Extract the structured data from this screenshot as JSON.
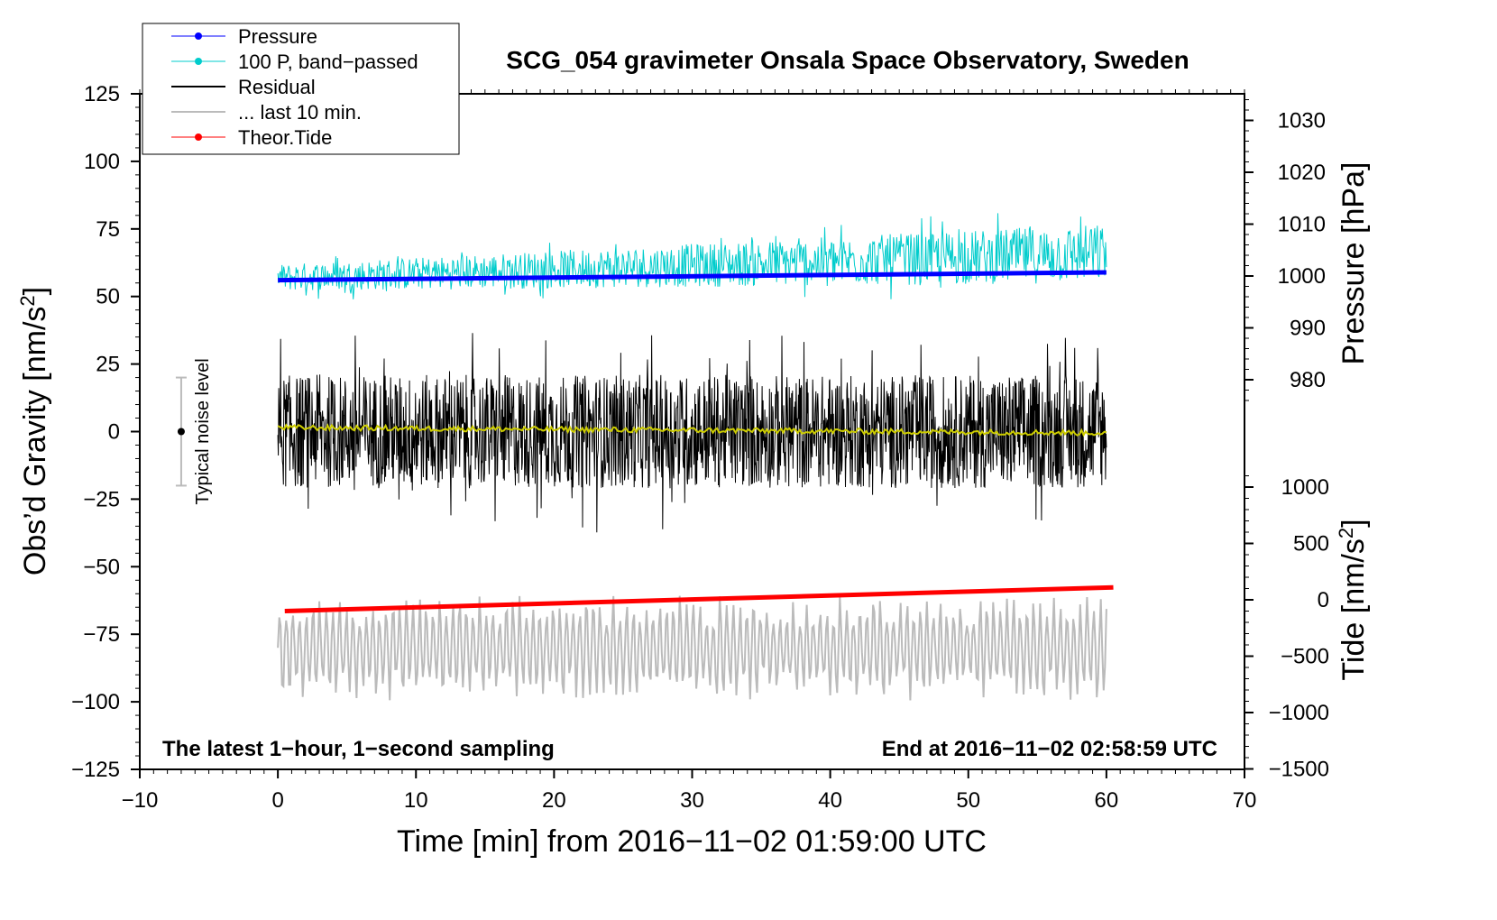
{
  "chart_data": {
    "type": "line",
    "title": "SCG_054 gravimeter Onsala Space Observatory, Sweden",
    "xlabel": "Time [min] from 2016−11−02 01:59:00 UTC",
    "ylabel_left": "Obs’d Gravity [nm/s",
    "ylabel_left_sup": "2",
    "ylabel_left_close": "]",
    "ylabel_right_pressure": "Pressure [hPa]",
    "ylabel_right_tide": "Tide [nm/s",
    "ylabel_right_tide_sup": "2",
    "ylabel_right_tide_close": "]",
    "xlim": [
      -10,
      70
    ],
    "ylim": [
      -125,
      125
    ],
    "x_ticks": [
      "−10",
      "0",
      "10",
      "20",
      "30",
      "40",
      "50",
      "60",
      "70"
    ],
    "y_ticks": [
      "125",
      "100",
      "75",
      "50",
      "25",
      "0",
      "−25",
      "−50",
      "−75",
      "−100",
      "−125"
    ],
    "pressure_axis": {
      "ticks": [
        "1030",
        "1020",
        "1010",
        "1000",
        "990",
        "980"
      ],
      "tick_values": [
        1030,
        1020,
        1010,
        1000,
        990,
        980
      ]
    },
    "tide_axis": {
      "ticks": [
        "1000",
        "500",
        "0",
        "−500",
        "−1000",
        "−1500"
      ],
      "tick_values": [
        1000,
        500,
        0,
        -500,
        -1000,
        -1500
      ]
    },
    "annotation_left": "The latest 1−hour, 1−second sampling",
    "annotation_right": "End at 2016−11−02 02:58:59 UTC",
    "noise_label": "Typical noise level",
    "noise_range": [
      -20,
      20
    ],
    "legend": [
      {
        "label": "Pressure",
        "color": "#0000ff",
        "marker": true
      },
      {
        "label": "100 P, band−passed",
        "color": "#00cccc",
        "marker": true
      },
      {
        "label": "Residual",
        "color": "#000000",
        "marker": false
      },
      {
        "label": "... last 10 min.",
        "color": "#bbbbbb",
        "marker": false
      },
      {
        "label": "Theor.Tide",
        "color": "#ff0000",
        "marker": true
      }
    ],
    "series": [
      {
        "name": "Pressure",
        "color": "#0000ff",
        "x_range": [
          0,
          60
        ],
        "pressure_start_hPa": 999.2,
        "pressure_end_hPa": 1000.7
      },
      {
        "name": "100 P, band−passed",
        "color": "#00cccc",
        "x_range": [
          0,
          60
        ],
        "level_start": 57,
        "level_end": 66,
        "amplitude_start": 5,
        "amplitude_end": 11
      },
      {
        "name": "Residual",
        "color": "#000000",
        "x_range": [
          0,
          60
        ],
        "level": 0,
        "amplitude": 30
      },
      {
        "name": "Residual smoothed",
        "color": "#cccc00",
        "x_range": [
          0,
          60
        ],
        "level": 0,
        "amplitude": 2
      },
      {
        "name": "... last 10 min.",
        "color": "#bbbbbb",
        "x_range": [
          0,
          60
        ],
        "level": -80,
        "amplitude": 20
      },
      {
        "name": "Theor.Tide",
        "color": "#ff0000",
        "x_range": [
          0.5,
          60.5
        ],
        "tide_start": -100,
        "tide_end": 110
      }
    ]
  }
}
